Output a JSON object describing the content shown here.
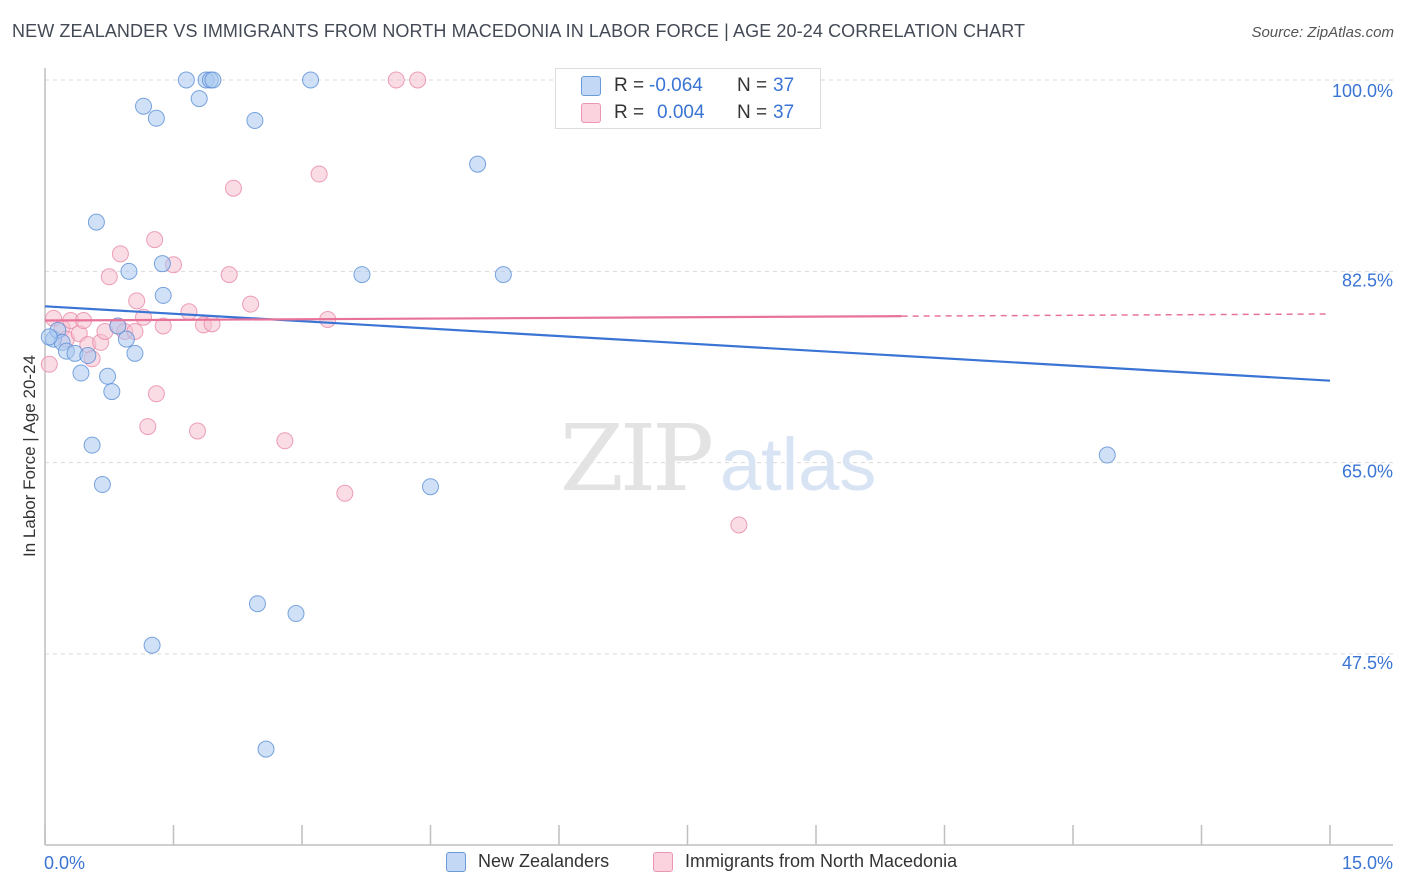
{
  "title": "NEW ZEALANDER VS IMMIGRANTS FROM NORTH MACEDONIA IN LABOR FORCE | AGE 20-24 CORRELATION CHART",
  "source": "Source: ZipAtlas.com",
  "watermark": {
    "zip": "ZIP",
    "atlas": "atlas"
  },
  "colors": {
    "blue_fill": "#a9c8f0",
    "blue_stroke": "#5b8fd6",
    "blue_line": "#3a74d4",
    "pink_fill": "#f6bfd0",
    "pink_stroke": "#e888a8",
    "pink_line": "#e8739a",
    "tick_label": "#3a74d4",
    "grid": "#d9d9d9"
  },
  "stats": {
    "blue": {
      "r_label": "R =",
      "r_value": "-0.064",
      "n_label": "N =",
      "n_value": "37"
    },
    "pink": {
      "r_label": "R =",
      "r_value": "0.004",
      "n_label": "N =",
      "n_value": "37"
    }
  },
  "chart_data": {
    "type": "scatter",
    "title": "NEW ZEALANDER VS IMMIGRANTS FROM NORTH MACEDONIA IN LABOR FORCE | AGE 20-24 CORRELATION CHART",
    "xlabel": "",
    "ylabel": "In Labor Force | Age 20-24",
    "xlim": [
      0,
      15
    ],
    "ylim": [
      31.5,
      102
    ],
    "x_tick_labels": [
      "0.0%",
      "15.0%"
    ],
    "y_ticks": [
      47.5,
      65.0,
      82.5,
      100.0
    ],
    "y_tick_labels": [
      "47.5%",
      "65.0%",
      "82.5%",
      "100.0%"
    ],
    "grid": true,
    "legend": "bottom-center",
    "series": [
      {
        "name": "New Zealanders",
        "color": "blue",
        "trend": {
          "x": [
            0.0,
            15.0
          ],
          "y": [
            79.3,
            72.5
          ]
        },
        "points": [
          {
            "x": 0.1,
            "y": 76.3
          },
          {
            "x": 0.15,
            "y": 77.1
          },
          {
            "x": 0.2,
            "y": 76.0
          },
          {
            "x": 0.25,
            "y": 75.2
          },
          {
            "x": 0.35,
            "y": 75.0
          },
          {
            "x": 0.42,
            "y": 73.2
          },
          {
            "x": 0.5,
            "y": 74.8
          },
          {
            "x": 0.55,
            "y": 66.6
          },
          {
            "x": 0.6,
            "y": 87.0
          },
          {
            "x": 0.67,
            "y": 63.0
          },
          {
            "x": 0.73,
            "y": 72.9
          },
          {
            "x": 0.78,
            "y": 71.5
          },
          {
            "x": 0.85,
            "y": 77.5
          },
          {
            "x": 0.95,
            "y": 76.3
          },
          {
            "x": 0.98,
            "y": 82.5
          },
          {
            "x": 1.05,
            "y": 75.0
          },
          {
            "x": 1.15,
            "y": 97.6
          },
          {
            "x": 1.25,
            "y": 48.3
          },
          {
            "x": 1.3,
            "y": 96.5
          },
          {
            "x": 1.37,
            "y": 83.2
          },
          {
            "x": 1.38,
            "y": 80.3
          },
          {
            "x": 1.65,
            "y": 100.0
          },
          {
            "x": 1.8,
            "y": 98.3
          },
          {
            "x": 1.88,
            "y": 100.0
          },
          {
            "x": 1.93,
            "y": 100.0
          },
          {
            "x": 1.96,
            "y": 100.0
          },
          {
            "x": 2.45,
            "y": 96.3
          },
          {
            "x": 2.48,
            "y": 52.1
          },
          {
            "x": 2.58,
            "y": 38.8
          },
          {
            "x": 2.93,
            "y": 51.2
          },
          {
            "x": 3.1,
            "y": 100.0
          },
          {
            "x": 3.7,
            "y": 82.2
          },
          {
            "x": 4.5,
            "y": 62.8
          },
          {
            "x": 5.05,
            "y": 92.3
          },
          {
            "x": 5.35,
            "y": 82.2
          },
          {
            "x": 12.4,
            "y": 65.7
          },
          {
            "x": 0.05,
            "y": 76.5
          }
        ]
      },
      {
        "name": "Immigrants from North Macedonia",
        "color": "pink",
        "trend": {
          "x": [
            0.0,
            10.0
          ],
          "y": [
            78.0,
            78.4
          ]
        },
        "trend_dashed": {
          "x": [
            10.0,
            15.0
          ],
          "y": [
            78.4,
            78.6
          ]
        },
        "points": [
          {
            "x": 0.05,
            "y": 74.0
          },
          {
            "x": 0.1,
            "y": 78.2
          },
          {
            "x": 0.2,
            "y": 77.3
          },
          {
            "x": 0.25,
            "y": 76.3
          },
          {
            "x": 0.3,
            "y": 78.0
          },
          {
            "x": 0.4,
            "y": 76.8
          },
          {
            "x": 0.45,
            "y": 78.0
          },
          {
            "x": 0.5,
            "y": 75.8
          },
          {
            "x": 0.55,
            "y": 74.5
          },
          {
            "x": 0.65,
            "y": 76.0
          },
          {
            "x": 0.7,
            "y": 77.0
          },
          {
            "x": 0.75,
            "y": 82.0
          },
          {
            "x": 0.85,
            "y": 77.5
          },
          {
            "x": 0.88,
            "y": 84.1
          },
          {
            "x": 0.93,
            "y": 77.0
          },
          {
            "x": 1.05,
            "y": 77.0
          },
          {
            "x": 1.07,
            "y": 79.8
          },
          {
            "x": 1.15,
            "y": 78.3
          },
          {
            "x": 1.2,
            "y": 68.3
          },
          {
            "x": 1.28,
            "y": 85.4
          },
          {
            "x": 1.3,
            "y": 71.3
          },
          {
            "x": 1.38,
            "y": 77.5
          },
          {
            "x": 1.5,
            "y": 83.1
          },
          {
            "x": 1.68,
            "y": 78.8
          },
          {
            "x": 1.78,
            "y": 67.9
          },
          {
            "x": 1.85,
            "y": 77.6
          },
          {
            "x": 1.95,
            "y": 77.7
          },
          {
            "x": 2.15,
            "y": 82.2
          },
          {
            "x": 2.2,
            "y": 90.1
          },
          {
            "x": 2.4,
            "y": 79.5
          },
          {
            "x": 2.8,
            "y": 67.0
          },
          {
            "x": 3.2,
            "y": 91.4
          },
          {
            "x": 3.3,
            "y": 78.1
          },
          {
            "x": 3.5,
            "y": 62.2
          },
          {
            "x": 4.1,
            "y": 100.0
          },
          {
            "x": 4.35,
            "y": 100.0
          },
          {
            "x": 8.1,
            "y": 59.3
          }
        ]
      }
    ]
  }
}
